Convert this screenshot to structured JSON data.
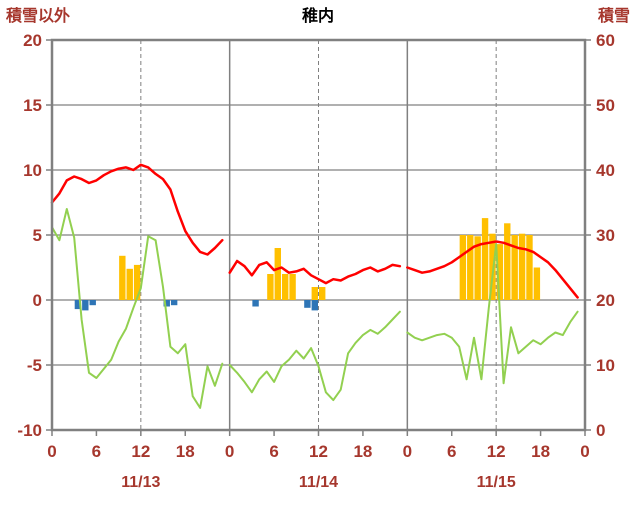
{
  "colors": {
    "red_line": "#FF0000",
    "green_line": "#92D050",
    "orange_bars": "#FFC000",
    "blue_bars": "#2E75B6",
    "purple_line": "#7030A0",
    "grid": "#808080",
    "label": "#A6372D",
    "title": "#000000",
    "background": "#FFFFFF"
  },
  "chart_data": {
    "type": "line",
    "title": "稚内",
    "total_hours": 72,
    "days": [
      "11/13",
      "11/14",
      "11/15"
    ],
    "hour_ticks": [
      0,
      6,
      12,
      18
    ],
    "left_axis": {
      "title": "積雪以外",
      "min": -10,
      "max": 20,
      "ticks": [
        20,
        15,
        10,
        5,
        0,
        -5,
        -10
      ]
    },
    "right_axis": {
      "title": "積雪",
      "min": 0,
      "max": 60,
      "ticks": [
        60,
        50,
        40,
        30,
        20,
        10,
        0
      ]
    },
    "grid": {
      "horizontal_interval": 5,
      "day_boundary_lines": "solid",
      "noon_lines": "dashed"
    },
    "series": [
      {
        "name": "orange-bars",
        "type": "bar",
        "axis": "left",
        "color": "#FFC000",
        "bars": [
          {
            "hour": 9,
            "value": 3.4
          },
          {
            "hour": 10,
            "value": 2.4
          },
          {
            "hour": 11,
            "value": 2.7
          },
          {
            "hour": 29,
            "value": 2.0
          },
          {
            "hour": 30,
            "value": 4.0
          },
          {
            "hour": 31,
            "value": 2.0
          },
          {
            "hour": 32,
            "value": 2.0
          },
          {
            "hour": 35,
            "value": 1.0
          },
          {
            "hour": 36,
            "value": 1.0
          },
          {
            "hour": 55,
            "value": 5.0
          },
          {
            "hour": 56,
            "value": 5.0
          },
          {
            "hour": 57,
            "value": 4.9
          },
          {
            "hour": 58,
            "value": 6.3
          },
          {
            "hour": 59,
            "value": 5.1
          },
          {
            "hour": 60,
            "value": 4.3
          },
          {
            "hour": 61,
            "value": 5.9
          },
          {
            "hour": 62,
            "value": 5.0
          },
          {
            "hour": 63,
            "value": 5.1
          },
          {
            "hour": 64,
            "value": 5.0
          },
          {
            "hour": 65,
            "value": 2.5
          }
        ]
      },
      {
        "name": "blue-bars",
        "type": "bar",
        "axis": "left",
        "color": "#2E75B6",
        "bars": [
          {
            "hour": 3,
            "value": -0.7
          },
          {
            "hour": 4,
            "value": -0.8
          },
          {
            "hour": 5,
            "value": -0.4
          },
          {
            "hour": 15,
            "value": -0.5
          },
          {
            "hour": 16,
            "value": -0.4
          },
          {
            "hour": 27,
            "value": -0.5
          },
          {
            "hour": 34,
            "value": -0.6
          },
          {
            "hour": 35,
            "value": -0.8
          }
        ]
      },
      {
        "name": "purple-line",
        "type": "line",
        "axis": "right",
        "color": "#7030A0",
        "width": 2,
        "constant": 0
      },
      {
        "name": "green-line",
        "type": "line",
        "axis": "left",
        "color": "#92D050",
        "width": 2,
        "values": [
          5.6,
          4.6,
          7.0,
          4.8,
          -1.5,
          -5.6,
          -6.0,
          -5.3,
          -4.6,
          -3.2,
          -2.2,
          -0.6,
          0.9,
          4.9,
          4.6,
          1.0,
          -3.6,
          -4.1,
          -3.4,
          -7.4,
          -8.3,
          -5.1,
          -6.6,
          -4.9,
          -5.0,
          -5.6,
          -6.3,
          -7.1,
          -6.1,
          -5.5,
          -6.3,
          -5.1,
          -4.6,
          -3.9,
          -4.5,
          -3.7,
          -5.1,
          -7.1,
          -7.7,
          -6.9,
          -4.1,
          -3.3,
          -2.7,
          -2.3,
          -2.6,
          -2.1,
          -1.5,
          -0.9,
          -2.5,
          -2.9,
          -3.1,
          -2.9,
          -2.7,
          -2.6,
          -2.9,
          -3.6,
          -6.1,
          -2.9,
          -6.1,
          -0.6,
          4.3,
          -6.4,
          -2.1,
          -4.1,
          -3.6,
          -3.1,
          -3.4,
          -2.9,
          -2.5,
          -2.7,
          -1.7,
          -0.9
        ]
      },
      {
        "name": "red-line",
        "type": "line",
        "axis": "left",
        "color": "#FF0000",
        "width": 2.5,
        "values": [
          7.5,
          8.2,
          9.2,
          9.5,
          9.3,
          9.0,
          9.2,
          9.6,
          9.9,
          10.1,
          10.2,
          10.0,
          10.4,
          10.2,
          9.7,
          9.3,
          8.5,
          6.8,
          5.3,
          4.4,
          3.7,
          3.5,
          4.0,
          4.6,
          2.1,
          3.0,
          2.6,
          1.9,
          2.7,
          2.9,
          2.3,
          2.5,
          2.1,
          2.2,
          2.4,
          1.9,
          1.6,
          1.3,
          1.6,
          1.5,
          1.8,
          2.0,
          2.3,
          2.5,
          2.2,
          2.4,
          2.7,
          2.6,
          2.5,
          2.3,
          2.1,
          2.2,
          2.4,
          2.6,
          2.9,
          3.3,
          3.7,
          4.1,
          4.3,
          4.4,
          4.5,
          4.4,
          4.2,
          4.0,
          3.9,
          3.7,
          3.3,
          2.9,
          2.3,
          1.6,
          0.9,
          0.2
        ]
      }
    ]
  }
}
